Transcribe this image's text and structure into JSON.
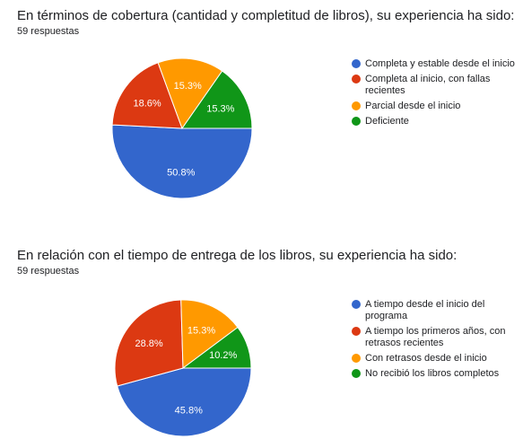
{
  "colors": {
    "blue": "#3366cc",
    "red": "#dc3912",
    "orange": "#ff9900",
    "green": "#109618"
  },
  "chart_data": [
    {
      "type": "pie",
      "title": "En términos de cobertura (cantidad y completitud de libros), su experiencia ha sido:",
      "subtitle": "59 respuestas",
      "legend_position": "right",
      "categories": [
        "Completa y estable desde el inicio",
        "Completa al inicio, con fallas recientes",
        "Parcial desde el inicio",
        "Deficiente"
      ],
      "values": [
        50.8,
        18.6,
        15.3,
        15.3
      ],
      "labels": [
        "50.8%",
        "18.6%",
        "15.3%",
        "15.3%"
      ],
      "colors": [
        "#3366cc",
        "#dc3912",
        "#ff9900",
        "#109618"
      ]
    },
    {
      "type": "pie",
      "title": "En relación con el tiempo de entrega de los libros, su experiencia ha sido:",
      "subtitle": "59 respuestas",
      "legend_position": "right",
      "categories": [
        "A tiempo desde el inicio del programa",
        "A tiempo los primeros años, con retrasos recientes",
        "Con retrasos desde el inicio",
        "No recibió los libros completos"
      ],
      "values": [
        45.8,
        28.8,
        15.3,
        10.2
      ],
      "labels": [
        "45.8%",
        "28.8%",
        "15.3%",
        "10.2%"
      ],
      "colors": [
        "#3366cc",
        "#dc3912",
        "#ff9900",
        "#109618"
      ]
    }
  ]
}
